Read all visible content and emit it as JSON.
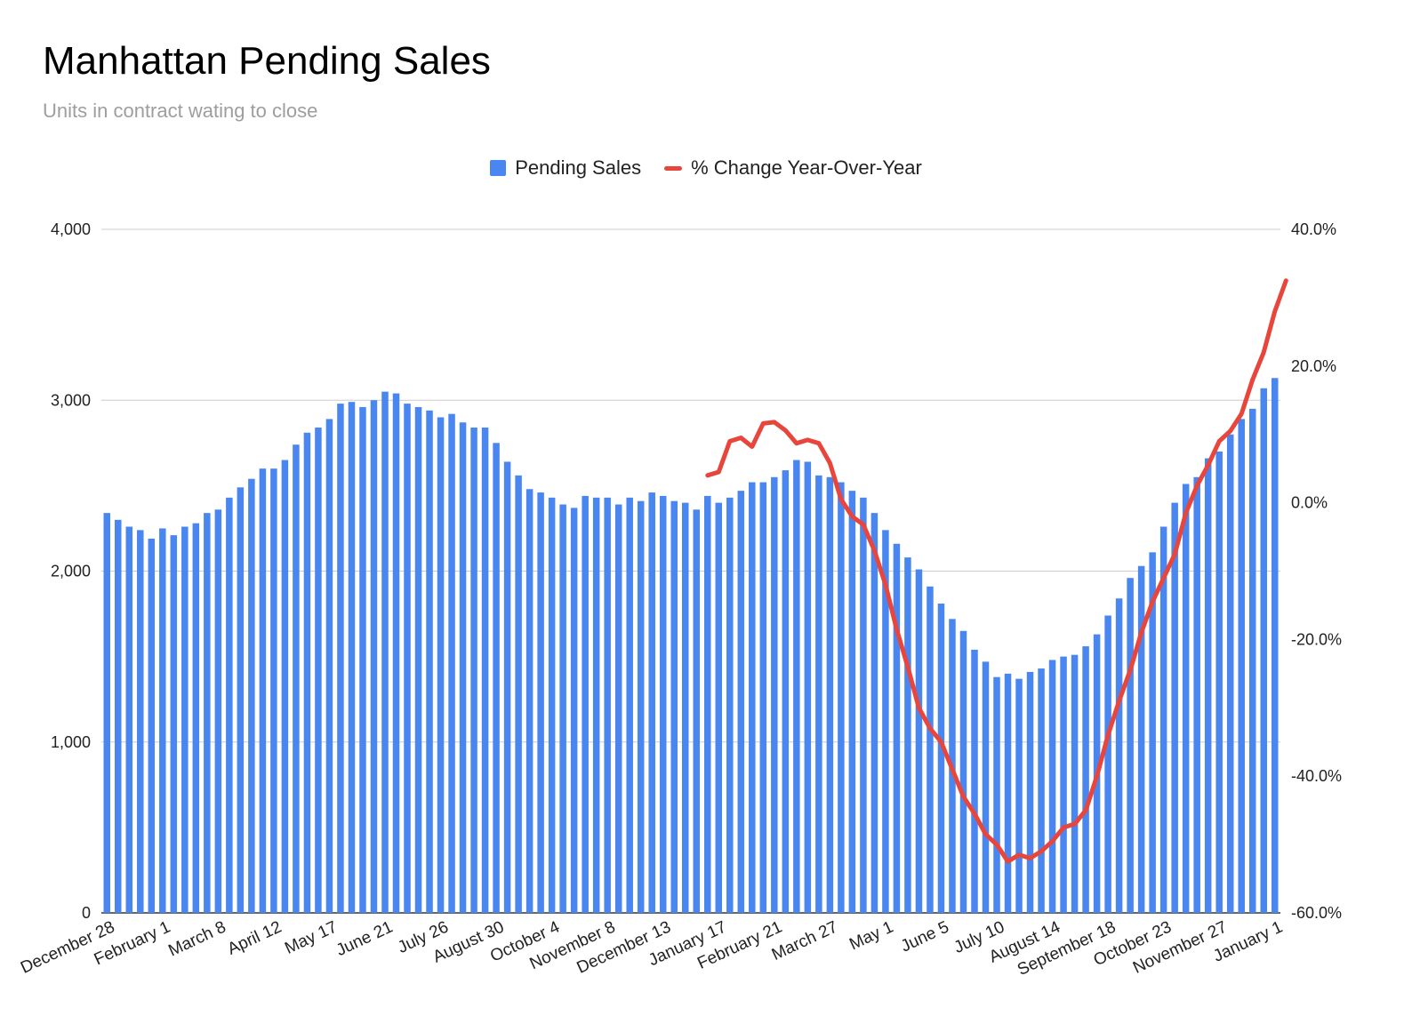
{
  "chart_data": {
    "type": "bar",
    "title": "Manhattan Pending Sales",
    "subtitle": "Units in contract wating to close",
    "legend": [
      {
        "name": "Pending Sales",
        "kind": "bar",
        "color": "#4a86f0"
      },
      {
        "name": "% Change Year-Over-Year",
        "kind": "line",
        "color": "#e8463c"
      }
    ],
    "legend_position": "top",
    "grid": true,
    "y_left": {
      "min": 0,
      "max": 4000,
      "ticks": [
        "0",
        "1,000",
        "2,000",
        "3,000",
        "4,000"
      ]
    },
    "y_right": {
      "min": -60,
      "max": 40,
      "ticks": [
        "-60.0%",
        "-40.0%",
        "-20.0%",
        "0.0%",
        "20.0%",
        "40.0%"
      ]
    },
    "x_tick_labels": [
      "December 28",
      "February 1",
      "March 8",
      "April 12",
      "May 17",
      "June 21",
      "July 26",
      "August 30",
      "October 4",
      "November 8",
      "December 13",
      "January 17",
      "February 21",
      "March 27",
      "May 1",
      "June 5",
      "July 10",
      "August 14",
      "September 18",
      "October 23",
      "November 27",
      "January 1"
    ],
    "series": [
      {
        "name": "Pending Sales",
        "type": "bar",
        "values": [
          2340,
          2300,
          2260,
          2240,
          2190,
          2250,
          2210,
          2260,
          2280,
          2340,
          2360,
          2430,
          2490,
          2540,
          2600,
          2600,
          2650,
          2740,
          2810,
          2840,
          2890,
          2980,
          2990,
          2960,
          3000,
          3050,
          3040,
          2980,
          2960,
          2940,
          2900,
          2920,
          2870,
          2840,
          2840,
          2750,
          2640,
          2560,
          2480,
          2460,
          2430,
          2390,
          2370,
          2440,
          2430,
          2430,
          2390,
          2430,
          2410,
          2460,
          2440,
          2410,
          2400,
          2360,
          2440,
          2400,
          2430,
          2470,
          2520,
          2520,
          2550,
          2590,
          2650,
          2640,
          2560,
          2550,
          2520,
          2470,
          2430,
          2340,
          2240,
          2160,
          2080,
          2010,
          1910,
          1810,
          1720,
          1650,
          1540,
          1470,
          1380,
          1400,
          1370,
          1410,
          1430,
          1480,
          1500,
          1510,
          1560,
          1630,
          1740,
          1840,
          1960,
          2030,
          2110,
          2260,
          2400,
          2510,
          2550,
          2660,
          2700,
          2800,
          2890,
          2950,
          3070,
          3130
        ]
      },
      {
        "name": "% Change Year-Over-Year",
        "type": "line",
        "start_index": 54,
        "values": [
          4.0,
          4.5,
          9.0,
          9.5,
          8.2,
          11.6,
          11.8,
          10.6,
          8.7,
          9.2,
          8.7,
          5.8,
          0.5,
          -2.0,
          -3.2,
          -7.0,
          -12.0,
          -18.5,
          -24.0,
          -30.0,
          -33.0,
          -35.0,
          -39.0,
          -43.0,
          -45.5,
          -48.5,
          -50.0,
          -52.5,
          -51.5,
          -52.0,
          -51.0,
          -49.5,
          -47.5,
          -47.0,
          -45.0,
          -40.0,
          -34.0,
          -29.0,
          -24.5,
          -19.0,
          -14.5,
          -11.0,
          -7.5,
          -1.5,
          2.5,
          5.5,
          9.0,
          10.5,
          13.0,
          18.0,
          22.0,
          28.0,
          32.5
        ]
      }
    ]
  }
}
